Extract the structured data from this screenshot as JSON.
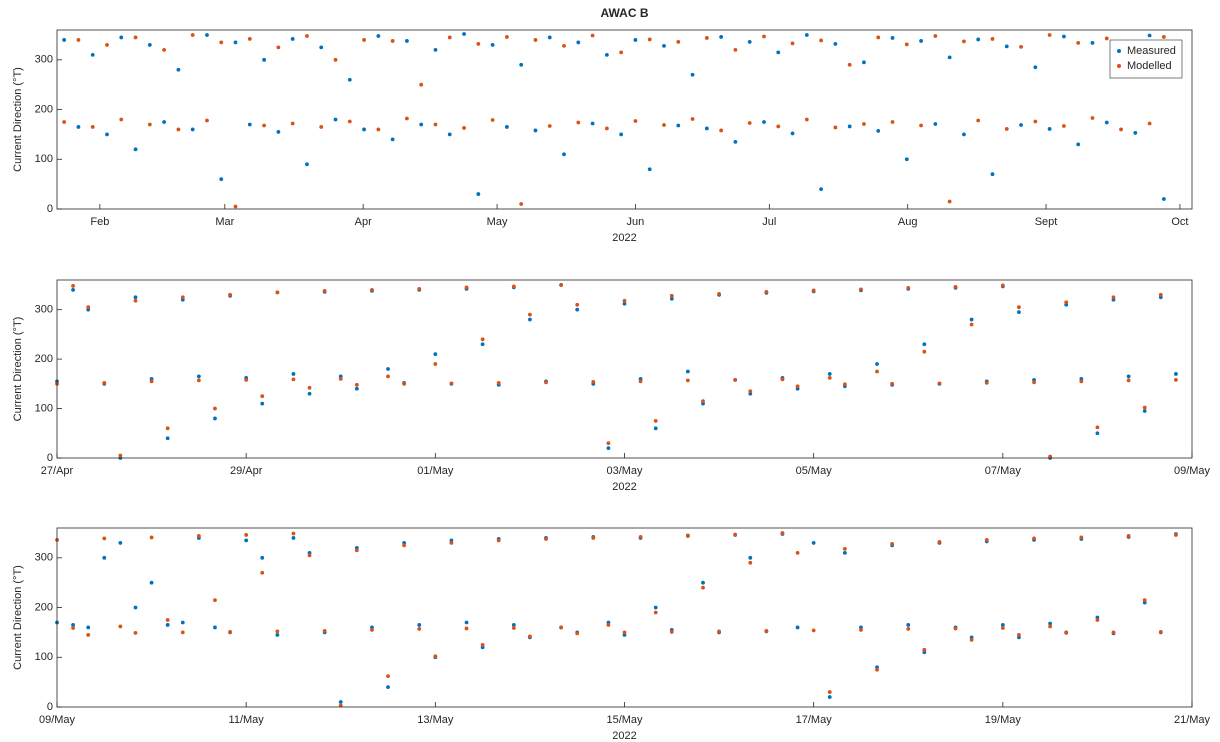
{
  "chart_data": [
    {
      "type": "scatter",
      "title": "AWAC B",
      "ylabel": "Current Direction (°T)",
      "xlabel": "2022",
      "legend": "upper right",
      "xlim": [
        22.4,
        276.7
      ],
      "ylim": [
        0,
        360
      ],
      "xticks": [
        {
          "value": 32,
          "label": "Feb"
        },
        {
          "value": 60,
          "label": "Mar"
        },
        {
          "value": 91,
          "label": "Apr"
        },
        {
          "value": 121,
          "label": "May"
        },
        {
          "value": 152,
          "label": "Jun"
        },
        {
          "value": 182,
          "label": "Jul"
        },
        {
          "value": 213,
          "label": "Aug"
        },
        {
          "value": 244,
          "label": "Sept"
        },
        {
          "value": 274,
          "label": "Oct"
        }
      ],
      "yticks": [
        0,
        100,
        200,
        300
      ],
      "x": [
        24,
        27.2,
        30.4,
        33.6,
        36.8,
        40,
        43.2,
        46.4,
        49.6,
        52.8,
        56,
        59.2,
        62.4,
        65.6,
        68.8,
        72,
        75.2,
        78.4,
        81.6,
        84.8,
        88,
        91.2,
        94.4,
        97.6,
        100.8,
        104,
        107.2,
        110.4,
        113.6,
        116.8,
        120,
        123.2,
        126.4,
        129.6,
        132.8,
        136,
        139.2,
        142.4,
        145.6,
        148.8,
        152,
        155.2,
        158.4,
        161.6,
        164.8,
        168,
        171.2,
        174.4,
        177.6,
        180.8,
        184,
        187.2,
        190.4,
        193.6,
        196.8,
        200,
        203.2,
        206.4,
        209.6,
        212.8,
        216,
        219.2,
        222.4,
        225.6,
        228.8,
        232,
        235.2,
        238.4,
        241.6,
        244.8,
        248,
        251.2,
        254.4,
        257.6,
        260.8,
        264,
        267.2,
        270.4
      ],
      "series": [
        {
          "name": "Measured",
          "color": "#0072bd",
          "values": [
            340,
            165,
            310,
            150,
            345,
            120,
            330,
            175,
            280,
            160,
            350,
            60,
            335,
            170,
            300,
            155,
            342,
            90,
            325,
            180,
            260,
            160,
            348,
            140,
            338,
            170,
            320,
            150,
            352,
            30,
            330,
            165,
            290,
            158,
            345,
            110,
            335,
            172,
            310,
            150,
            340,
            80,
            328,
            168,
            270,
            162,
            346,
            135,
            336,
            175,
            315,
            152,
            350,
            40,
            332,
            166,
            295,
            157,
            344,
            100,
            338,
            171,
            305,
            150,
            341,
            70,
            327,
            169,
            285,
            161,
            347,
            130,
            334,
            174,
            312,
            153,
            349,
            20
          ]
        },
        {
          "name": "Modelled",
          "color": "#d95319",
          "values": [
            175,
            340,
            165,
            330,
            180,
            345,
            170,
            320,
            160,
            350,
            178,
            335,
            5,
            342,
            168,
            325,
            172,
            348,
            165,
            300,
            176,
            340,
            160,
            338,
            182,
            250,
            170,
            345,
            163,
            332,
            179,
            346,
            10,
            340,
            167,
            328,
            174,
            349,
            162,
            315,
            177,
            341,
            169,
            336,
            181,
            344,
            158,
            320,
            173,
            347,
            166,
            333,
            180,
            339,
            164,
            290,
            171,
            345,
            175,
            331,
            168,
            348,
            15,
            337,
            178,
            342,
            161,
            326,
            176,
            350,
            167,
            334,
            183,
            343,
            160,
            322,
            172,
            346
          ]
        }
      ]
    },
    {
      "type": "scatter",
      "ylabel": "Current Direction (°T)",
      "xlabel": "2022",
      "xlim": [
        117,
        129
      ],
      "ylim": [
        0,
        360
      ],
      "xticks": [
        {
          "value": 117,
          "label": "27/Apr"
        },
        {
          "value": 119,
          "label": "29/Apr"
        },
        {
          "value": 121,
          "label": "01/May"
        },
        {
          "value": 123,
          "label": "03/May"
        },
        {
          "value": 125,
          "label": "05/May"
        },
        {
          "value": 127,
          "label": "07/May"
        },
        {
          "value": 129,
          "label": "09/May"
        }
      ],
      "yticks": [
        0,
        100,
        200,
        300
      ],
      "x": [
        117,
        117.17,
        117.33,
        117.5,
        117.67,
        117.83,
        118,
        118.17,
        118.33,
        118.5,
        118.67,
        118.83,
        119,
        119.17,
        119.33,
        119.5,
        119.67,
        119.83,
        120,
        120.17,
        120.33,
        120.5,
        120.67,
        120.83,
        121,
        121.17,
        121.33,
        121.5,
        121.67,
        121.83,
        122,
        122.17,
        122.33,
        122.5,
        122.67,
        122.83,
        123,
        123.17,
        123.33,
        123.5,
        123.67,
        123.83,
        124,
        124.17,
        124.33,
        124.5,
        124.67,
        124.83,
        125,
        125.17,
        125.33,
        125.5,
        125.67,
        125.83,
        126,
        126.17,
        126.33,
        126.5,
        126.67,
        126.83,
        127,
        127.17,
        127.33,
        127.5,
        127.67,
        127.83,
        128,
        128.17,
        128.33,
        128.5,
        128.67,
        128.83
      ],
      "series": [
        {
          "color": "#0072bd",
          "values": [
            155,
            340,
            300,
            150,
            0,
            325,
            160,
            40,
            320,
            165,
            80,
            328,
            162,
            110,
            335,
            170,
            130,
            336,
            165,
            140,
            338,
            180,
            152,
            340,
            210,
            150,
            342,
            230,
            148,
            345,
            280,
            155,
            350,
            300,
            150,
            20,
            312,
            160,
            60,
            322,
            175,
            110,
            330,
            158,
            130,
            334,
            162,
            140,
            337,
            170,
            145,
            339,
            190,
            148,
            342,
            230,
            150,
            344,
            280,
            155,
            347,
            295,
            158,
            0,
            310,
            160,
            50,
            320,
            165,
            95,
            325,
            170
          ]
        },
        {
          "color": "#d95319",
          "values": [
            150,
            348,
            305,
            152,
            5,
            318,
            155,
            60,
            325,
            157,
            100,
            330,
            158,
            125,
            335,
            159,
            142,
            338,
            160,
            148,
            340,
            165,
            150,
            342,
            190,
            151,
            345,
            240,
            152,
            347,
            290,
            153,
            350,
            310,
            154,
            30,
            318,
            155,
            75,
            328,
            157,
            115,
            332,
            158,
            135,
            336,
            159,
            145,
            339,
            162,
            149,
            341,
            175,
            150,
            344,
            215,
            151,
            346,
            270,
            152,
            349,
            305,
            153,
            3,
            315,
            155,
            62,
            325,
            157,
            102,
            330,
            158
          ]
        }
      ]
    },
    {
      "type": "scatter",
      "ylabel": "Current Direction (°T)",
      "xlabel": "2022",
      "xlim": [
        129,
        141
      ],
      "ylim": [
        0,
        360
      ],
      "xticks": [
        {
          "value": 129,
          "label": "09/May"
        },
        {
          "value": 131,
          "label": "11/May"
        },
        {
          "value": 133,
          "label": "13/May"
        },
        {
          "value": 135,
          "label": "15/May"
        },
        {
          "value": 137,
          "label": "17/May"
        },
        {
          "value": 139,
          "label": "19/May"
        },
        {
          "value": 141,
          "label": "21/May"
        }
      ],
      "yticks": [
        0,
        100,
        200,
        300
      ],
      "x": [
        129,
        129.17,
        129.33,
        129.5,
        129.67,
        129.83,
        130,
        130.17,
        130.33,
        130.5,
        130.67,
        130.83,
        131,
        131.17,
        131.33,
        131.5,
        131.67,
        131.83,
        132,
        132.17,
        132.33,
        132.5,
        132.67,
        132.83,
        133,
        133.17,
        133.33,
        133.5,
        133.67,
        133.83,
        134,
        134.17,
        134.33,
        134.5,
        134.67,
        134.83,
        135,
        135.17,
        135.33,
        135.5,
        135.67,
        135.83,
        136,
        136.17,
        136.33,
        136.5,
        136.67,
        136.83,
        137,
        137.17,
        137.33,
        137.5,
        137.67,
        137.83,
        138,
        138.17,
        138.33,
        138.5,
        138.67,
        138.83,
        139,
        139.17,
        139.33,
        139.5,
        139.67,
        139.83,
        140,
        140.17,
        140.33,
        140.5,
        140.67,
        140.83
      ],
      "series": [
        {
          "color": "#0072bd",
          "values": [
            170,
            165,
            160,
            300,
            330,
            200,
            250,
            165,
            170,
            340,
            160,
            150,
            335,
            300,
            145,
            340,
            310,
            150,
            10,
            320,
            160,
            40,
            330,
            165,
            100,
            335,
            170,
            120,
            338,
            165,
            140,
            340,
            160,
            150,
            342,
            170,
            145,
            340,
            200,
            155,
            344,
            250,
            150,
            346,
            300,
            152,
            348,
            160,
            330,
            20,
            310,
            160,
            80,
            325,
            165,
            110,
            330,
            160,
            140,
            333,
            165,
            140,
            336,
            168,
            150,
            338,
            180,
            148,
            342,
            210,
            150,
            348
          ]
        },
        {
          "color": "#d95319",
          "values": [
            336,
            159,
            145,
            339,
            162,
            149,
            341,
            175,
            150,
            344,
            215,
            151,
            346,
            270,
            152,
            349,
            305,
            153,
            3,
            315,
            155,
            62,
            325,
            157,
            102,
            330,
            158,
            125,
            335,
            159,
            142,
            338,
            160,
            148,
            340,
            165,
            150,
            342,
            190,
            151,
            345,
            240,
            152,
            347,
            290,
            153,
            350,
            310,
            154,
            30,
            318,
            155,
            75,
            328,
            157,
            115,
            332,
            158,
            135,
            336,
            159,
            145,
            339,
            162,
            149,
            341,
            175,
            150,
            344,
            215,
            151,
            346
          ]
        }
      ]
    }
  ]
}
